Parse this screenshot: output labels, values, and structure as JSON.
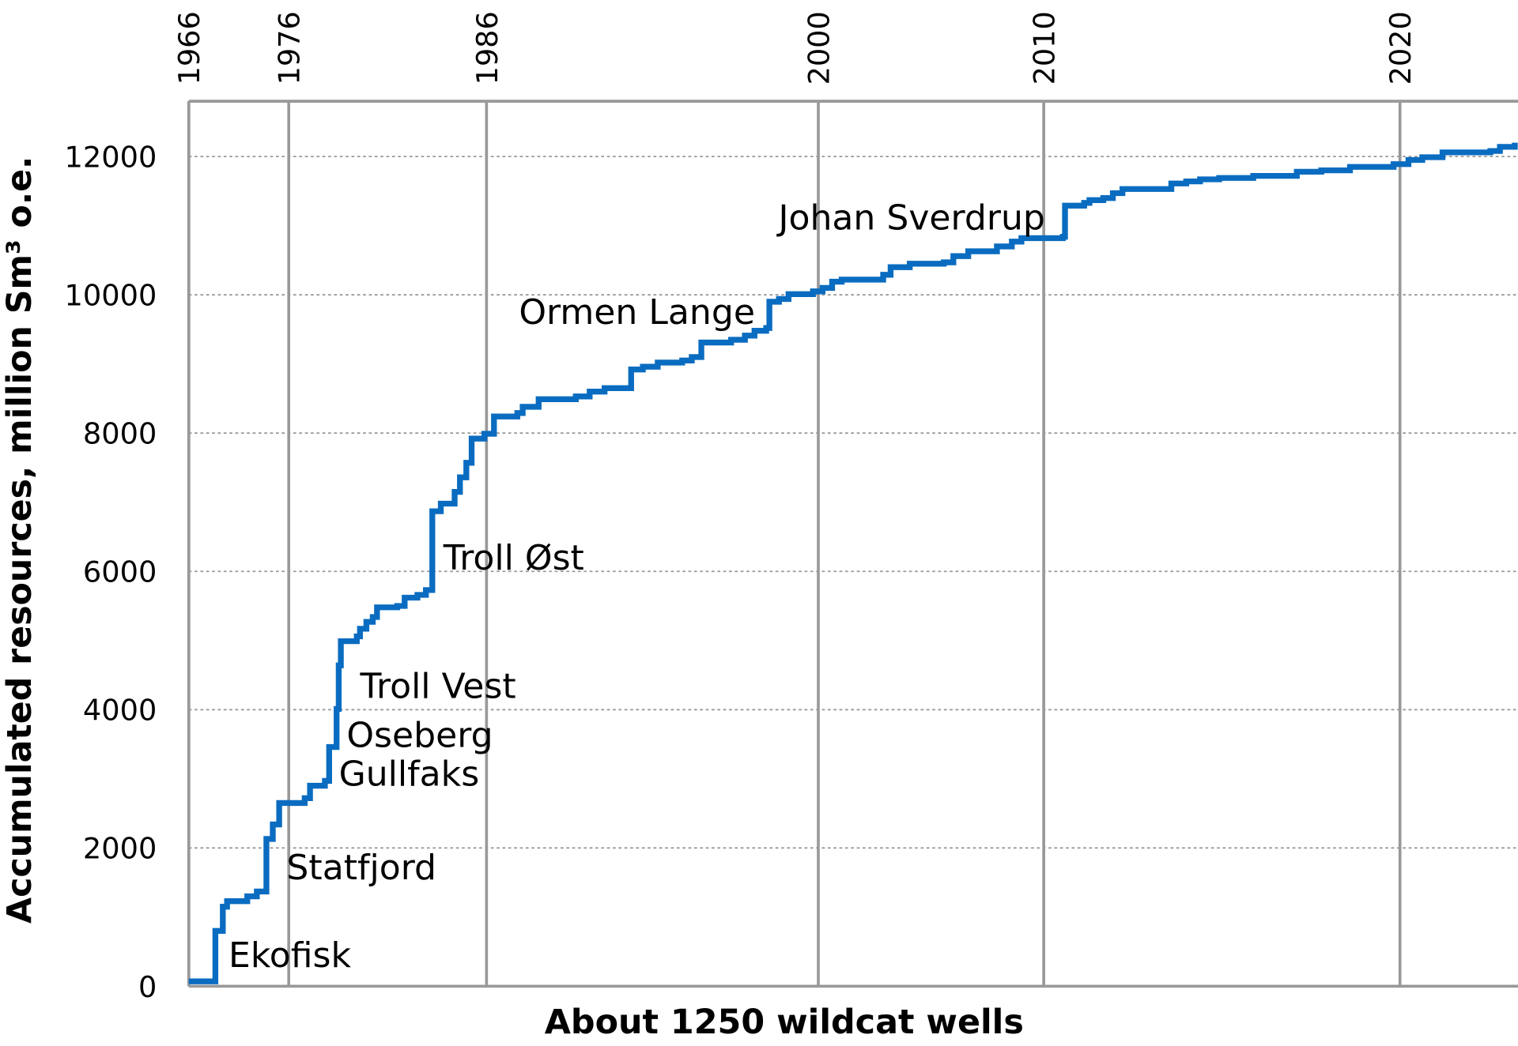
{
  "chart_data": {
    "type": "line",
    "xlabel": "About 1250 wildcat wells",
    "ylabel": "Accumulated resources, million Sm³ o.e.",
    "x": [
      0,
      25,
      25,
      32,
      36,
      55,
      64,
      73,
      73,
      79,
      85,
      109,
      114,
      128,
      132,
      138,
      139,
      141,
      143,
      158,
      161,
      167,
      173,
      177,
      196,
      203,
      215,
      223,
      229,
      229,
      237,
      250,
      255,
      261,
      266,
      278,
      287,
      309,
      314,
      329,
      364,
      377,
      391,
      412,
      416,
      427,
      441,
      464,
      473,
      482,
      510,
      523,
      532,
      543,
      546,
      555,
      564,
      587,
      596,
      605,
      614,
      646,
      653,
      660,
      678,
      710,
      719,
      733,
      760,
      774,
      783,
      822,
      824,
      842,
      847,
      860,
      869,
      878,
      910,
      924,
      938,
      951,
      969,
      1001,
      1042,
      1065,
      1092,
      1133,
      1147,
      1160,
      1179,
      1224,
      1233,
      1247
    ],
    "series": [
      {
        "name": "Accumulated resources",
        "color": "#0a6cc0",
        "values": [
          70,
          70,
          800,
          1150,
          1230,
          1300,
          1370,
          1400,
          2130,
          2340,
          2650,
          2720,
          2900,
          2970,
          3460,
          3460,
          4010,
          4640,
          4990,
          5060,
          5170,
          5270,
          5340,
          5480,
          5500,
          5620,
          5660,
          5730,
          5730,
          6870,
          6980,
          7150,
          7360,
          7570,
          7920,
          7990,
          8240,
          8290,
          8380,
          8490,
          8530,
          8600,
          8650,
          8650,
          8920,
          8960,
          9020,
          9050,
          9100,
          9310,
          9350,
          9410,
          9480,
          9520,
          9900,
          9940,
          10010,
          10050,
          10100,
          10190,
          10220,
          10220,
          10290,
          10400,
          10450,
          10470,
          10560,
          10630,
          10700,
          10770,
          10820,
          10840,
          11290,
          11330,
          11370,
          11400,
          11470,
          11530,
          11530,
          11610,
          11640,
          11670,
          11690,
          11720,
          11780,
          11800,
          11850,
          11890,
          11950,
          11990,
          12060,
          12080,
          12140,
          12200
        ]
      }
    ],
    "xlim": [
      0,
      1250
    ],
    "xticks": [
      {
        "value": 0,
        "label": "1966"
      },
      {
        "value": 94,
        "label": "1976"
      },
      {
        "value": 280,
        "label": "1986"
      },
      {
        "value": 592,
        "label": "2000"
      },
      {
        "value": 804,
        "label": "2010"
      },
      {
        "value": 1139,
        "label": "2020"
      }
    ],
    "ylim": [
      0,
      12800
    ],
    "yticks": [
      0,
      2000,
      4000,
      6000,
      8000,
      10000,
      12000
    ],
    "grid": true,
    "annotations": [
      "Ekofisk",
      "Statfjord",
      "Gullfaks",
      "Oseberg",
      "Troll Vest",
      "Troll Øst",
      "Ormen Lange",
      "Johan Sverdrup"
    ]
  }
}
